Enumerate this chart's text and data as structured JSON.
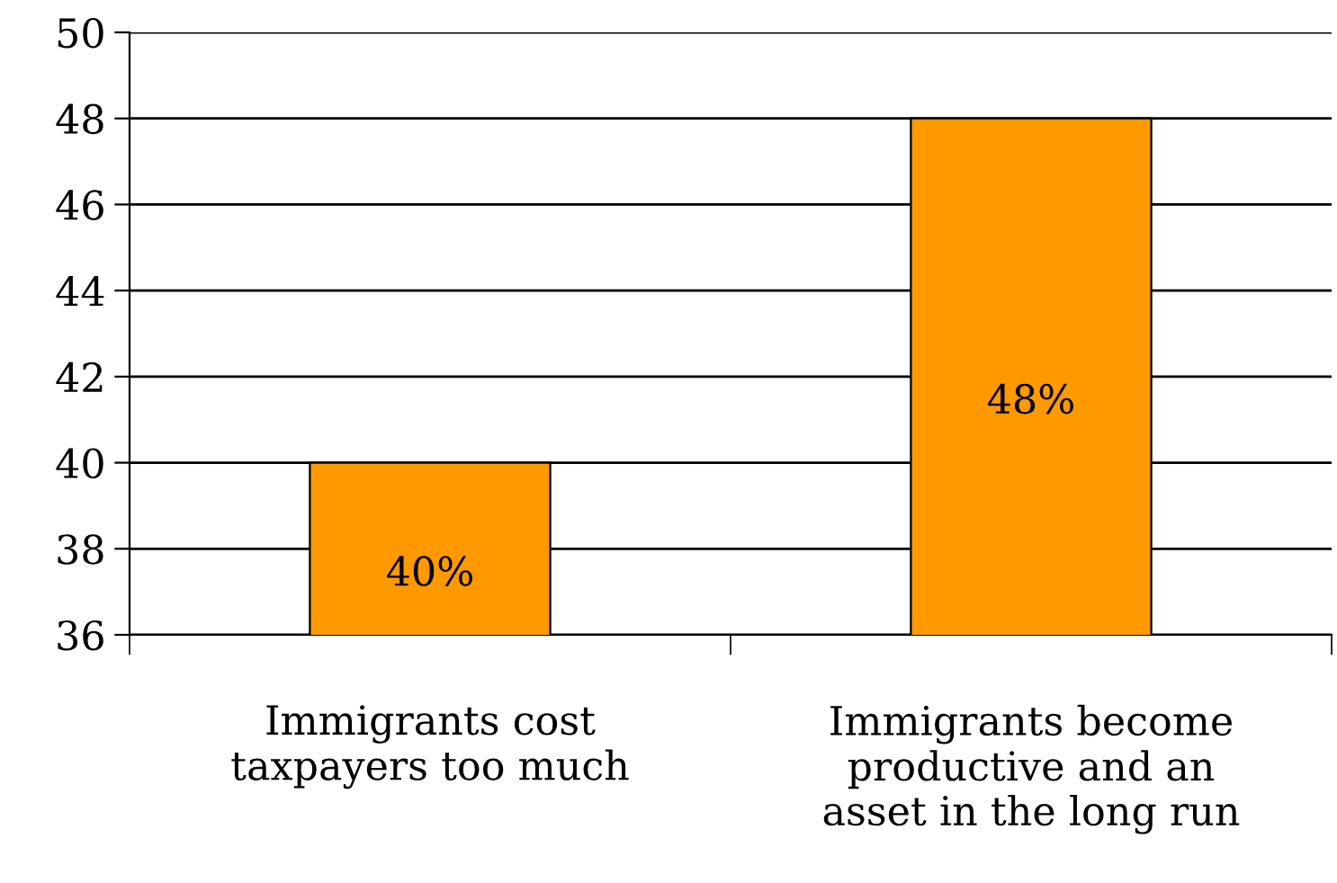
{
  "chart_data": {
    "type": "bar",
    "categories": [
      "Immigrants cost taxpayers too much",
      "Immigrants become productive and an asset in the long run"
    ],
    "values": [
      40,
      48
    ],
    "value_labels": [
      "40%",
      "48%"
    ],
    "color": "#ff9900",
    "ylim": [
      36,
      50
    ],
    "yticks": [
      36,
      38,
      40,
      42,
      44,
      46,
      48,
      50
    ],
    "grid": "y"
  }
}
